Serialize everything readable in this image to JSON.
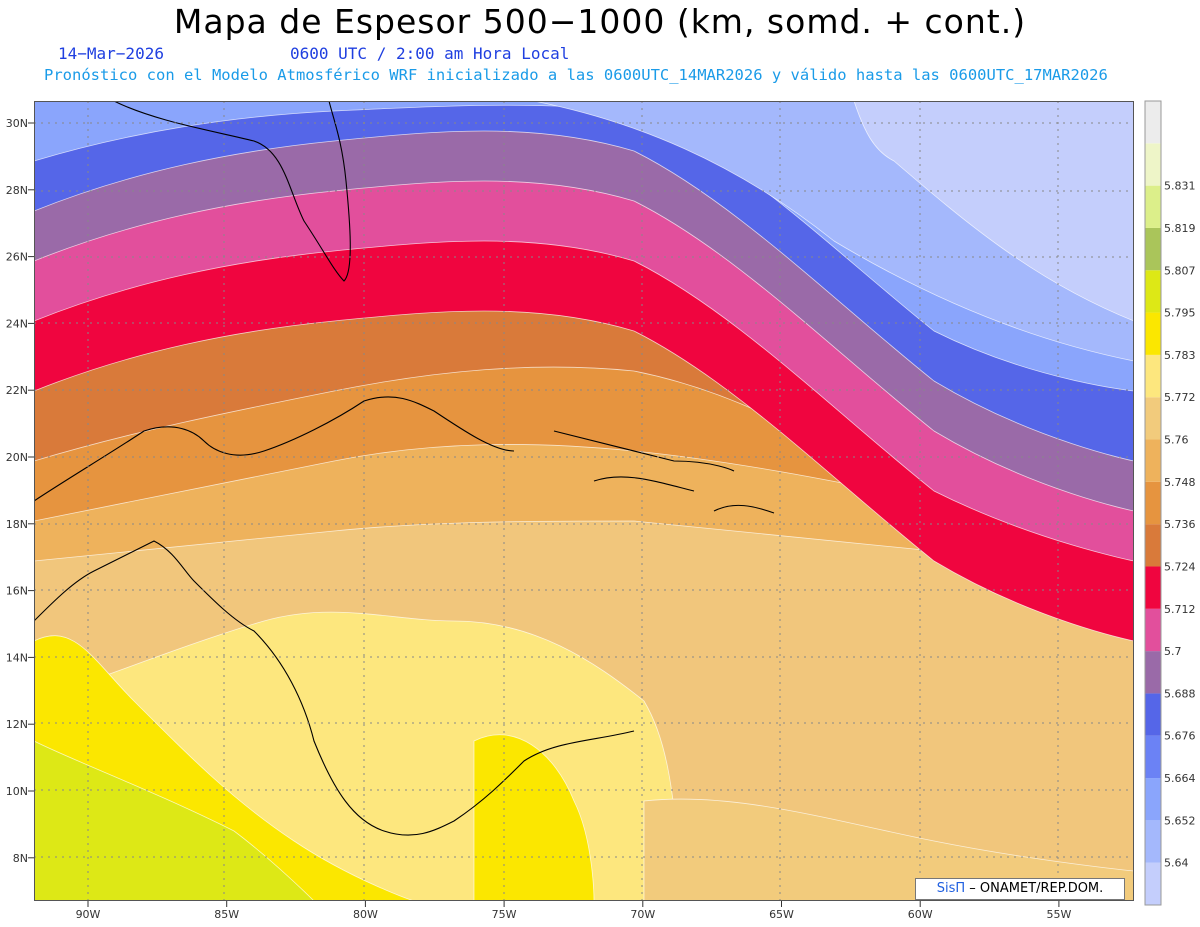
{
  "header": {
    "title": "Mapa de Espesor 500−1000 (km, somd. + cont.)",
    "date": "14−Mar−2026",
    "time": "0600 UTC / 2:00 am Hora Local",
    "forecast": "Pronóstico con el Modelo Atmosférico WRF inicializado a las 0600UTC_14MAR2026 y válido hasta las  0600UTC_17MAR2026"
  },
  "map": {
    "lat_labels": [
      "30N",
      "28N",
      "26N",
      "24N",
      "22N",
      "20N",
      "18N",
      "16N",
      "14N",
      "12N",
      "10N",
      "8N"
    ],
    "lon_labels": [
      "90W",
      "85W",
      "80W",
      "75W",
      "70W",
      "65W",
      "60W",
      "55W"
    ]
  },
  "legend": {
    "values": [
      "5.64",
      "5.652",
      "5.664",
      "5.676",
      "5.688",
      "5.7",
      "5.712",
      "5.724",
      "5.736",
      "5.748",
      "5.76",
      "5.772",
      "5.783",
      "5.795",
      "5.807",
      "5.819",
      "5.831"
    ],
    "colors": [
      "#c4cefc",
      "#a4b8fc",
      "#8aa5fc",
      "#6b82f5",
      "#5566e8",
      "#9a6aa8",
      "#e24f9c",
      "#f0053f",
      "#d97a3a",
      "#e6943f",
      "#eeb25c",
      "#f2cb7c",
      "#fde77e",
      "#fbe700",
      "#dde816",
      "#aac55a",
      "#dcef8a",
      "#eef5c8",
      "#ececec"
    ]
  },
  "credit": {
    "sis": "SisΠ",
    "org": "– ONAMET/REP.DOM."
  }
}
